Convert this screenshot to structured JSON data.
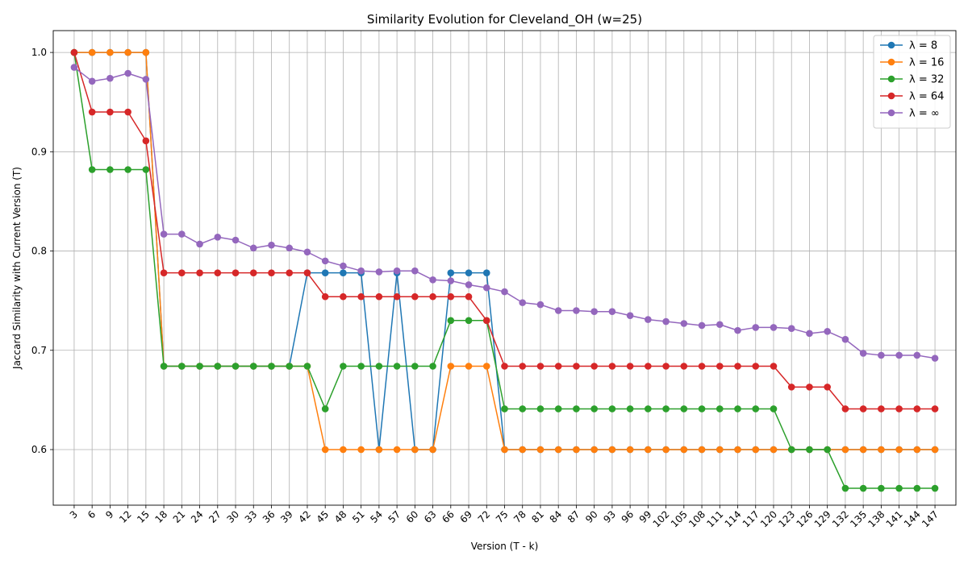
{
  "chart_data": {
    "type": "line",
    "title": "Similarity Evolution for Cleveland_OH (w=25)",
    "xlabel": "Version (T - k)",
    "ylabel": "Jaccard Similarity with Current Version (T)",
    "x": [
      3,
      6,
      9,
      12,
      15,
      18,
      21,
      24,
      27,
      30,
      33,
      36,
      39,
      42,
      45,
      48,
      51,
      54,
      57,
      60,
      63,
      66,
      69,
      72,
      75,
      78,
      81,
      84,
      87,
      90,
      93,
      96,
      99,
      102,
      105,
      108,
      111,
      114,
      117,
      120,
      123,
      126,
      129,
      132,
      135,
      138,
      141,
      144,
      147
    ],
    "xlim": [
      -0.5,
      150.5
    ],
    "ylim": [
      0.544,
      1.022
    ],
    "yticks": [
      0.6,
      0.7,
      0.8,
      0.9,
      1.0
    ],
    "ytick_labels": [
      "0.6",
      "0.7",
      "0.8",
      "0.9",
      "1.0"
    ],
    "grid": true,
    "legend_position": "upper right",
    "series": [
      {
        "name": "λ = 8",
        "color": "#1f77b4",
        "values": [
          1.0,
          1.0,
          1.0,
          1.0,
          1.0,
          0.684,
          0.684,
          0.684,
          0.684,
          0.684,
          0.684,
          0.684,
          0.684,
          0.778,
          0.778,
          0.778,
          0.778,
          0.6,
          0.778,
          0.6,
          0.6,
          0.778,
          0.778,
          0.778,
          0.6,
          0.6,
          0.6,
          0.6,
          0.6,
          0.6,
          0.6,
          0.6,
          0.6,
          0.6,
          0.6,
          0.6,
          0.6,
          0.6,
          0.6,
          0.6,
          0.6,
          0.6,
          0.6,
          0.6,
          0.6,
          0.6,
          0.6,
          0.6,
          0.6
        ]
      },
      {
        "name": "λ = 16",
        "color": "#ff7f0e",
        "values": [
          1.0,
          1.0,
          1.0,
          1.0,
          1.0,
          0.684,
          0.684,
          0.684,
          0.684,
          0.684,
          0.684,
          0.684,
          0.684,
          0.684,
          0.6,
          0.6,
          0.6,
          0.6,
          0.6,
          0.6,
          0.6,
          0.684,
          0.684,
          0.684,
          0.6,
          0.6,
          0.6,
          0.6,
          0.6,
          0.6,
          0.6,
          0.6,
          0.6,
          0.6,
          0.6,
          0.6,
          0.6,
          0.6,
          0.6,
          0.6,
          0.6,
          0.6,
          0.6,
          0.6,
          0.6,
          0.6,
          0.6,
          0.6,
          0.6
        ]
      },
      {
        "name": "λ = 32",
        "color": "#2ca02c",
        "values": [
          1.0,
          0.882,
          0.882,
          0.882,
          0.882,
          0.684,
          0.684,
          0.684,
          0.684,
          0.684,
          0.684,
          0.684,
          0.684,
          0.684,
          0.641,
          0.684,
          0.684,
          0.684,
          0.684,
          0.684,
          0.684,
          0.73,
          0.73,
          0.73,
          0.641,
          0.641,
          0.641,
          0.641,
          0.641,
          0.641,
          0.641,
          0.641,
          0.641,
          0.641,
          0.641,
          0.641,
          0.641,
          0.641,
          0.641,
          0.641,
          0.6,
          0.6,
          0.6,
          0.561,
          0.561,
          0.561,
          0.561,
          0.561,
          0.561
        ]
      },
      {
        "name": "λ = 64",
        "color": "#d62728",
        "values": [
          1.0,
          0.94,
          0.94,
          0.94,
          0.911,
          0.778,
          0.778,
          0.778,
          0.778,
          0.778,
          0.778,
          0.778,
          0.778,
          0.778,
          0.754,
          0.754,
          0.754,
          0.754,
          0.754,
          0.754,
          0.754,
          0.754,
          0.754,
          0.73,
          0.684,
          0.684,
          0.684,
          0.684,
          0.684,
          0.684,
          0.684,
          0.684,
          0.684,
          0.684,
          0.684,
          0.684,
          0.684,
          0.684,
          0.684,
          0.684,
          0.663,
          0.663,
          0.663,
          0.641,
          0.641,
          0.641,
          0.641,
          0.641,
          0.641
        ]
      },
      {
        "name": "λ = ∞",
        "color": "#9467bd",
        "values": [
          0.985,
          0.971,
          0.974,
          0.979,
          0.973,
          0.817,
          0.817,
          0.807,
          0.814,
          0.811,
          0.803,
          0.806,
          0.803,
          0.799,
          0.79,
          0.785,
          0.78,
          0.779,
          0.78,
          0.78,
          0.771,
          0.77,
          0.766,
          0.763,
          0.759,
          0.748,
          0.746,
          0.74,
          0.74,
          0.739,
          0.739,
          0.735,
          0.731,
          0.729,
          0.727,
          0.725,
          0.726,
          0.72,
          0.723,
          0.723,
          0.722,
          0.717,
          0.719,
          0.711,
          0.697,
          0.695,
          0.695,
          0.695,
          0.692
        ]
      }
    ]
  }
}
